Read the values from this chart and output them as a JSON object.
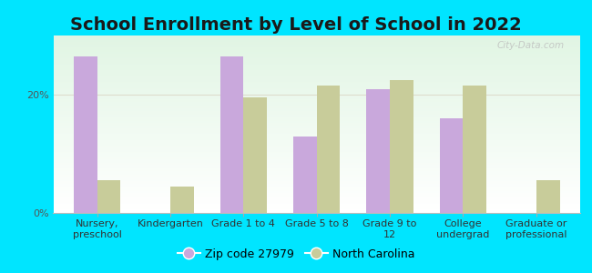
{
  "title": "School Enrollment by Level of School in 2022",
  "categories": [
    "Nursery,\npreschool",
    "Kindergarten",
    "Grade 1 to 4",
    "Grade 5 to 8",
    "Grade 9 to\n12",
    "College\nundergrad",
    "Graduate or\nprofessional"
  ],
  "zip_values": [
    26.5,
    0.0,
    26.5,
    13.0,
    21.0,
    16.0,
    0.0
  ],
  "nc_values": [
    5.5,
    4.5,
    19.5,
    21.5,
    22.5,
    21.5,
    5.5
  ],
  "zip_color": "#c9a8dc",
  "nc_color": "#c8cc9a",
  "background_outer": "#00e5ff",
  "ylabel_ticks": [
    "0%",
    "20%"
  ],
  "yticks": [
    0,
    20
  ],
  "ylim": [
    0,
    30
  ],
  "legend_zip_label": "Zip code 27979",
  "legend_nc_label": "North Carolina",
  "watermark": "City-Data.com",
  "title_fontsize": 14,
  "tick_fontsize": 8,
  "legend_fontsize": 9,
  "bar_width": 0.32
}
